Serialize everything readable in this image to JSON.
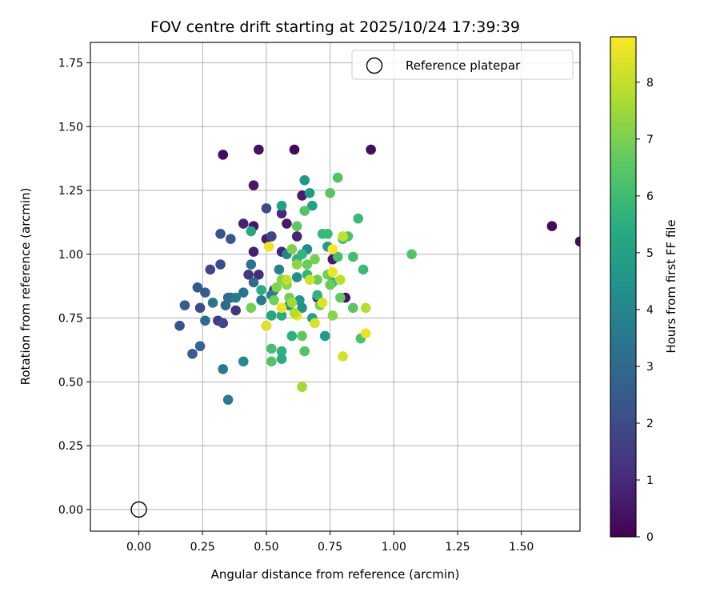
{
  "chart_data": {
    "type": "scatter",
    "title": "FOV centre drift starting at 2025/10/24 17:39:39",
    "xlabel": "Angular distance from reference (arcmin)",
    "ylabel": "Rotation from reference (arcmin)",
    "xlim": [
      -0.19,
      1.73
    ],
    "ylim": [
      -0.085,
      1.83
    ],
    "xticks": [
      "0.00",
      "0.25",
      "0.50",
      "0.75",
      "1.00",
      "1.25",
      "1.50"
    ],
    "yticks": [
      "0.00",
      "0.25",
      "0.50",
      "0.75",
      "1.00",
      "1.25",
      "1.50",
      "1.75"
    ],
    "grid": true,
    "legend": {
      "placement": "top-right",
      "entries": [
        "Reference platepar"
      ]
    },
    "colorbar": {
      "label": "Hours from first FF file",
      "range": [
        0,
        8.8
      ],
      "ticks": [
        "0",
        "1",
        "2",
        "3",
        "4",
        "5",
        "6",
        "7",
        "8"
      ],
      "colormap": "viridis"
    },
    "reference_point": {
      "x": 0.0,
      "y": 0.0
    },
    "series": [
      {
        "points": [
          [
            0.33,
            1.39,
            0.3
          ],
          [
            0.47,
            1.41,
            0.4
          ],
          [
            0.61,
            1.41,
            0.2
          ],
          [
            0.91,
            1.41,
            0.3
          ],
          [
            0.45,
            1.27,
            0.6
          ],
          [
            0.64,
            1.23,
            0.7
          ],
          [
            0.56,
            1.16,
            1.0
          ],
          [
            0.58,
            1.12,
            0.6
          ],
          [
            0.41,
            1.12,
            0.8
          ],
          [
            0.45,
            1.11,
            0.5
          ],
          [
            0.62,
            1.07,
            0.9
          ],
          [
            0.5,
            1.06,
            0.7
          ],
          [
            0.56,
            1.01,
            0.9
          ],
          [
            0.45,
            1.01,
            0.8
          ],
          [
            0.76,
            0.98,
            0.6
          ],
          [
            0.81,
            0.83,
            0.4
          ],
          [
            0.47,
            0.92,
            1.1
          ],
          [
            0.38,
            0.78,
            1.3
          ],
          [
            0.31,
            0.74,
            1.5
          ],
          [
            0.43,
            0.92,
            1.4
          ],
          [
            0.53,
            0.86,
            1.2
          ],
          [
            1.62,
            1.11,
            0.2
          ],
          [
            1.73,
            1.05,
            0.3
          ],
          [
            0.7,
            0.83,
            1.0
          ],
          [
            0.5,
            1.18,
            2.0
          ],
          [
            0.52,
            1.07,
            1.8
          ],
          [
            0.33,
            0.73,
            1.9
          ],
          [
            0.24,
            0.79,
            2.1
          ],
          [
            0.16,
            0.72,
            2.2
          ],
          [
            0.36,
            1.06,
            2.3
          ],
          [
            0.32,
            1.08,
            2.2
          ],
          [
            0.28,
            0.94,
            1.8
          ],
          [
            0.32,
            0.96,
            2.0
          ],
          [
            0.23,
            0.87,
            2.4
          ],
          [
            0.26,
            0.85,
            2.5
          ],
          [
            0.36,
            0.83,
            2.7
          ],
          [
            0.18,
            0.8,
            2.5
          ],
          [
            0.21,
            0.61,
            2.6
          ],
          [
            0.24,
            0.64,
            2.8
          ],
          [
            0.26,
            0.74,
            3.0
          ],
          [
            0.29,
            0.81,
            3.3
          ],
          [
            0.34,
            0.8,
            2.9
          ],
          [
            0.35,
            0.83,
            3.1
          ],
          [
            0.38,
            0.83,
            3.6
          ],
          [
            0.41,
            0.85,
            3.4
          ],
          [
            0.44,
            0.96,
            3.3
          ],
          [
            0.45,
            0.89,
            3.0
          ],
          [
            0.48,
            0.82,
            3.6
          ],
          [
            0.33,
            0.55,
            3.6
          ],
          [
            0.35,
            0.43,
            3.6
          ],
          [
            0.41,
            0.58,
            4.2
          ],
          [
            0.5,
            0.72,
            4.5
          ],
          [
            0.52,
            0.84,
            3.8
          ],
          [
            0.55,
            0.94,
            3.9
          ],
          [
            0.58,
            1.0,
            4.0
          ],
          [
            0.62,
            0.91,
            4.3
          ],
          [
            0.59,
            0.8,
            4.2
          ],
          [
            0.63,
            0.82,
            4.6
          ],
          [
            0.64,
            0.79,
            4.4
          ],
          [
            0.66,
            1.02,
            4.2
          ],
          [
            0.65,
            1.29,
            4.6
          ],
          [
            0.67,
            1.24,
            4.8
          ],
          [
            0.68,
            1.19,
            5.0
          ],
          [
            0.56,
            1.19,
            5.0
          ],
          [
            0.73,
            0.68,
            4.8
          ],
          [
            0.74,
            1.03,
            4.9
          ],
          [
            0.68,
            0.75,
            5.0
          ],
          [
            0.52,
            0.76,
            5.2
          ],
          [
            0.56,
            0.76,
            5.4
          ],
          [
            0.48,
            0.86,
            5.4
          ],
          [
            0.6,
            0.68,
            5.6
          ],
          [
            0.56,
            0.62,
            5.6
          ],
          [
            0.56,
            0.59,
            5.4
          ],
          [
            0.62,
            0.98,
            5.6
          ],
          [
            0.64,
            1.0,
            5.8
          ],
          [
            0.66,
            0.92,
            5.8
          ],
          [
            0.7,
            0.84,
            5.7
          ],
          [
            0.72,
            1.08,
            5.9
          ],
          [
            0.74,
            1.08,
            5.9
          ],
          [
            0.76,
            0.89,
            6.0
          ],
          [
            0.78,
            0.99,
            6.2
          ],
          [
            0.8,
            1.06,
            6.1
          ],
          [
            0.82,
            1.07,
            6.3
          ],
          [
            0.84,
            0.99,
            6.1
          ],
          [
            0.86,
            1.14,
            5.9
          ],
          [
            0.87,
            0.67,
            6.3
          ],
          [
            0.88,
            0.94,
            6.0
          ],
          [
            1.07,
            1.0,
            6.4
          ],
          [
            0.44,
            1.09,
            5.2
          ],
          [
            0.78,
            1.3,
            6.4
          ],
          [
            0.75,
            1.24,
            6.5
          ],
          [
            0.65,
            1.17,
            6.4
          ],
          [
            0.62,
            1.11,
            6.6
          ],
          [
            0.52,
            0.63,
            6.2
          ],
          [
            0.52,
            0.58,
            6.4
          ],
          [
            0.64,
            0.68,
            6.6
          ],
          [
            0.65,
            0.62,
            6.4
          ],
          [
            0.84,
            0.79,
            6.5
          ],
          [
            0.79,
            0.83,
            6.7
          ],
          [
            0.7,
            0.9,
            6.8
          ],
          [
            0.74,
            0.92,
            6.9
          ],
          [
            0.75,
            0.88,
            6.8
          ],
          [
            0.71,
            0.8,
            7.0
          ],
          [
            0.76,
            0.76,
            7.2
          ],
          [
            0.69,
            0.98,
            7.0
          ],
          [
            0.66,
            0.96,
            6.8
          ],
          [
            0.59,
            0.83,
            6.9
          ],
          [
            0.54,
            0.87,
            7.1
          ],
          [
            0.56,
            0.9,
            7.2
          ],
          [
            0.58,
            0.88,
            7.3
          ],
          [
            0.6,
            1.02,
            7.1
          ],
          [
            0.62,
            0.96,
            7.3
          ],
          [
            0.53,
            0.82,
            6.9
          ],
          [
            0.44,
            0.79,
            6.9
          ],
          [
            0.6,
            0.81,
            7.6
          ],
          [
            0.64,
            0.48,
            7.6
          ],
          [
            0.69,
            0.73,
            8.3
          ],
          [
            0.67,
            0.9,
            8.2
          ],
          [
            0.72,
            0.81,
            8.4
          ],
          [
            0.76,
            0.93,
            8.6
          ],
          [
            0.76,
            1.02,
            8.7
          ],
          [
            0.79,
            0.9,
            7.9
          ],
          [
            0.8,
            1.07,
            8.0
          ],
          [
            0.89,
            0.69,
            8.5
          ],
          [
            0.89,
            0.79,
            7.8
          ],
          [
            0.8,
            0.6,
            8.2
          ],
          [
            0.62,
            0.76,
            8.5
          ],
          [
            0.51,
            1.03,
            8.6
          ],
          [
            0.5,
            0.72,
            8.4
          ],
          [
            0.56,
            0.79,
            8.6
          ],
          [
            0.58,
            0.9,
            8.0
          ],
          [
            0.61,
            0.77,
            7.8
          ]
        ]
      }
    ]
  }
}
